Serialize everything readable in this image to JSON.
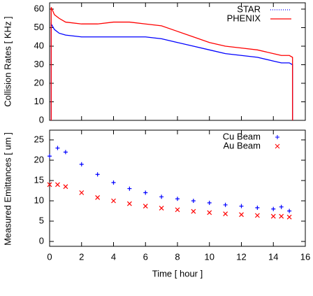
{
  "chart_data": [
    {
      "type": "line",
      "ylabel": "Collision Rates [ KHz ]",
      "x": [
        0.1,
        0.1,
        0.3,
        0.6,
        1,
        2,
        3,
        4,
        5,
        6,
        7,
        8,
        9,
        10,
        11,
        12,
        13,
        14,
        14.5,
        15,
        15.2,
        15.2
      ],
      "series": [
        {
          "name": "STAR",
          "color": "#0000ff",
          "dash": "dotted",
          "values": [
            0,
            52,
            49,
            47,
            46,
            45,
            45,
            45,
            45,
            45,
            44,
            42,
            40,
            38,
            36,
            35,
            34,
            32,
            31,
            31,
            30,
            0
          ]
        },
        {
          "name": "PHENIX",
          "color": "#ff0000",
          "dash": "solid",
          "values": [
            0,
            61,
            57,
            55,
            53,
            52,
            52,
            53,
            53,
            52,
            51,
            48,
            45,
            42,
            40,
            39,
            38,
            36,
            35,
            35,
            34,
            0
          ]
        }
      ],
      "xlim": [
        0,
        16
      ],
      "ylim": [
        0,
        63.4
      ],
      "yticks": [
        0,
        10,
        20,
        30,
        40,
        50,
        60
      ],
      "legend": "upper right"
    },
    {
      "type": "scatter",
      "xlabel": "Time [ hour ]",
      "ylabel": "Measured Emittances [ um ]",
      "x": [
        0,
        0.5,
        1,
        2,
        3,
        4,
        5,
        6,
        7,
        8,
        9,
        10,
        11,
        12,
        13,
        14,
        14.5,
        15
      ],
      "series": [
        {
          "name": "Cu Beam",
          "color": "#0000ff",
          "marker": "plus",
          "values": [
            21,
            23,
            22,
            19,
            16.5,
            14.5,
            13,
            12,
            11,
            10.5,
            10,
            9.5,
            9,
            8.7,
            8.3,
            8,
            8.5,
            7.5
          ]
        },
        {
          "name": "Au Beam",
          "color": "#ff0000",
          "marker": "cross",
          "values": [
            14,
            14,
            13.5,
            12,
            10.8,
            10,
            9.3,
            8.7,
            8.2,
            7.8,
            7.4,
            7.1,
            6.8,
            6.6,
            6.4,
            6.2,
            6.2,
            6
          ]
        }
      ],
      "xlim": [
        0,
        16
      ],
      "ylim": [
        -1.2,
        27.4
      ],
      "xticks": [
        0,
        2,
        4,
        6,
        8,
        10,
        12,
        14,
        16
      ],
      "yticks": [
        0,
        5,
        10,
        15,
        20,
        25
      ],
      "legend": "upper right"
    }
  ]
}
